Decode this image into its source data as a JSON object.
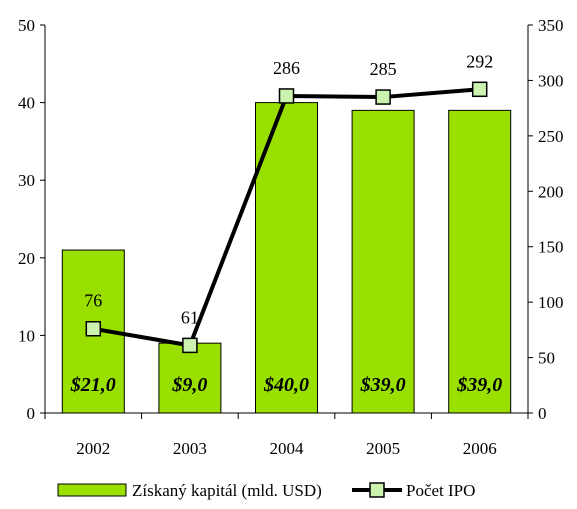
{
  "chart_data": {
    "type": "bar",
    "categories": [
      "2002",
      "2003",
      "2004",
      "2005",
      "2006"
    ],
    "series": [
      {
        "name": "Získaný kapitál (mld. USD)",
        "type": "bar",
        "axis": "left",
        "values": [
          21,
          9,
          40,
          39,
          39
        ],
        "labels": [
          "$21,0",
          "$9,0",
          "$40,0",
          "$39,0",
          "$39,0"
        ],
        "color": "#99e000"
      },
      {
        "name": "Počet IPO",
        "type": "line",
        "axis": "right",
        "values": [
          76,
          61,
          286,
          285,
          292
        ],
        "labels": [
          "76",
          "61",
          "286",
          "285",
          "292"
        ],
        "color": "#000000",
        "marker_color": "#ccf2b0"
      }
    ],
    "y_left": {
      "min": 0,
      "max": 50,
      "ticks": [
        "0",
        "10",
        "20",
        "30",
        "40",
        "50"
      ]
    },
    "y_right": {
      "min": 0,
      "max": 350,
      "ticks": [
        "0",
        "50",
        "100",
        "150",
        "200",
        "250",
        "300",
        "350"
      ]
    },
    "grid": false,
    "legend_position": "bottom"
  }
}
